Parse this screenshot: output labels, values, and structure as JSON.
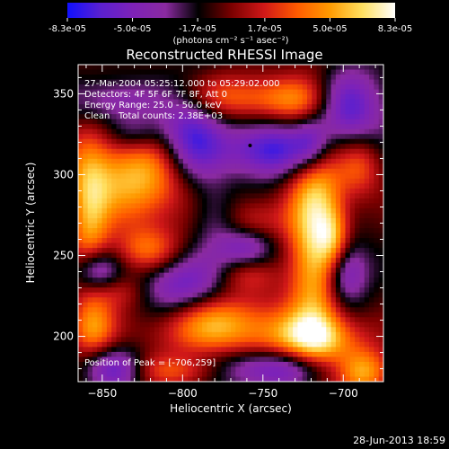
{
  "colors": {
    "background": "#000000",
    "text": "#ffffff",
    "colormap": [
      "#1010ff",
      "#5a20d0",
      "#7e22b8",
      "#8a2aa0",
      "#000000",
      "#7a0000",
      "#d01818",
      "#ff5a00",
      "#ff9a00",
      "#ffe060",
      "#ffffff"
    ]
  },
  "chart_data": {
    "type": "heatmap",
    "title": "Reconstructed RHESSI Image",
    "xlabel": "Heliocentric X (arcsec)",
    "ylabel": "Heliocentric Y (arcsec)",
    "xlim": [
      -865,
      -675
    ],
    "ylim": [
      172,
      368
    ],
    "xticks": [
      -850,
      -800,
      -750,
      -700
    ],
    "yticks": [
      200,
      250,
      300,
      350
    ],
    "colorbar": {
      "min": -8.3e-05,
      "max": 8.3e-05,
      "tick_values": [
        -8.3e-05,
        -5e-05,
        -1.7e-05,
        1.7e-05,
        5e-05,
        8.3e-05
      ],
      "tick_labels": [
        "-8.3e-05",
        "-5.0e-05",
        "-1.7e-05",
        "1.7e-05",
        "5.0e-05",
        "8.3e-05"
      ],
      "unit_label": "(photons cm⁻² s⁻¹ asec⁻²)"
    },
    "annotations": [
      "27-Mar-2004 05:25:12.000 to 05:29:02.000",
      "Detectors: 4F 5F 6F 7F 8F, Att 0",
      "Energy Range: 25.0 - 50.0 keV",
      "Clean   Total counts: 2.38E+03"
    ],
    "peak_label": "Position of Peak = [-706,259]",
    "peak": {
      "x": -706,
      "y": 259
    },
    "marker": {
      "x": -758,
      "y": 318
    },
    "regions": [
      {
        "x": -717,
        "y": 265,
        "sx": 12,
        "sy": 55,
        "v": 1.0
      },
      {
        "x": -706,
        "y": 259,
        "sx": 7,
        "sy": 14,
        "v": 0.45
      },
      {
        "x": -780,
        "y": 208,
        "sx": 26,
        "sy": 14,
        "v": 0.85
      },
      {
        "x": -720,
        "y": 199,
        "sx": 22,
        "sy": 11,
        "v": 0.75
      },
      {
        "x": -687,
        "y": 178,
        "sx": 12,
        "sy": 10,
        "v": 0.8
      },
      {
        "x": -826,
        "y": 298,
        "sx": 28,
        "sy": 20,
        "v": 0.85
      },
      {
        "x": -858,
        "y": 270,
        "sx": 9,
        "sy": 35,
        "v": 0.65
      },
      {
        "x": -822,
        "y": 253,
        "sx": 14,
        "sy": 10,
        "v": 0.55
      },
      {
        "x": -856,
        "y": 205,
        "sx": 10,
        "sy": 12,
        "v": 0.6
      },
      {
        "x": -828,
        "y": 180,
        "sx": 16,
        "sy": 8,
        "v": 0.4
      },
      {
        "x": -770,
        "y": 348,
        "sx": 24,
        "sy": 10,
        "v": 0.55
      },
      {
        "x": -730,
        "y": 346,
        "sx": 16,
        "sy": 10,
        "v": 0.45
      },
      {
        "x": -755,
        "y": 271,
        "sx": 14,
        "sy": 10,
        "v": 0.35
      },
      {
        "x": -690,
        "y": 306,
        "sx": 10,
        "sy": 14,
        "v": 0.5
      },
      {
        "x": -760,
        "y": 238,
        "sx": 14,
        "sy": 8,
        "v": 0.3
      },
      {
        "x": -840,
        "y": 228,
        "sx": 14,
        "sy": 8,
        "v": 0.35
      },
      {
        "x": -795,
        "y": 178,
        "sx": 18,
        "sy": 7,
        "v": 0.4
      },
      {
        "x": -795,
        "y": 320,
        "sx": 14,
        "sy": 22,
        "v": -0.85
      },
      {
        "x": -745,
        "y": 315,
        "sx": 22,
        "sy": 12,
        "v": -0.8
      },
      {
        "x": -700,
        "y": 340,
        "sx": 18,
        "sy": 18,
        "v": -0.75
      },
      {
        "x": -800,
        "y": 230,
        "sx": 20,
        "sy": 14,
        "v": -0.7
      },
      {
        "x": -840,
        "y": 180,
        "sx": 14,
        "sy": 9,
        "v": -0.8
      },
      {
        "x": -855,
        "y": 240,
        "sx": 10,
        "sy": 10,
        "v": -0.75
      },
      {
        "x": -700,
        "y": 240,
        "sx": 10,
        "sy": 14,
        "v": -0.75
      },
      {
        "x": -745,
        "y": 180,
        "sx": 30,
        "sy": 9,
        "v": -0.65
      },
      {
        "x": -760,
        "y": 255,
        "sx": 12,
        "sy": 9,
        "v": -0.55
      },
      {
        "x": -840,
        "y": 345,
        "sx": 20,
        "sy": 10,
        "v": -0.45
      },
      {
        "x": -830,
        "y": 325,
        "sx": 12,
        "sy": 8,
        "v": -0.35
      },
      {
        "x": -720,
        "y": 320,
        "sx": 8,
        "sy": 12,
        "v": -0.5
      },
      {
        "x": -780,
        "y": 275,
        "sx": 10,
        "sy": 16,
        "v": -0.3
      }
    ]
  },
  "footer": {
    "timestamp": "28-Jun-2013 18:59"
  }
}
